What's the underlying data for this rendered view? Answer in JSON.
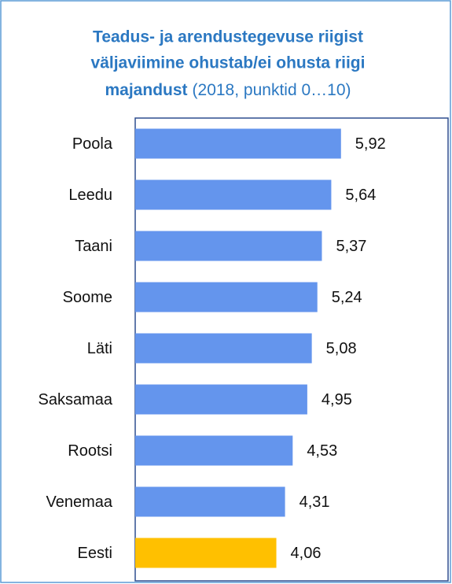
{
  "chart_data": {
    "type": "bar",
    "orientation": "horizontal",
    "title": [
      "Teadus- ja arendustegevuse riigist",
      "väljaviimine ohustab/ei ohusta riigi",
      "majandust"
    ],
    "subtitle": "(2018, punktid 0…10)",
    "categories": [
      "Poola",
      "Leedu",
      "Taani",
      "Soome",
      "Läti",
      "Saksamaa",
      "Rootsi",
      "Venemaa",
      "Eesti"
    ],
    "values": [
      5.92,
      5.64,
      5.37,
      5.24,
      5.08,
      4.95,
      4.53,
      4.31,
      4.06
    ],
    "value_labels": [
      "5,92",
      "5,64",
      "5,37",
      "5,24",
      "5,08",
      "4,95",
      "4,53",
      "4,31",
      "4,06"
    ],
    "colors": [
      "#6495ed",
      "#6495ed",
      "#6495ed",
      "#6495ed",
      "#6495ed",
      "#6495ed",
      "#6495ed",
      "#6495ed",
      "#ffc000"
    ],
    "xlim": [
      0,
      9
    ]
  }
}
